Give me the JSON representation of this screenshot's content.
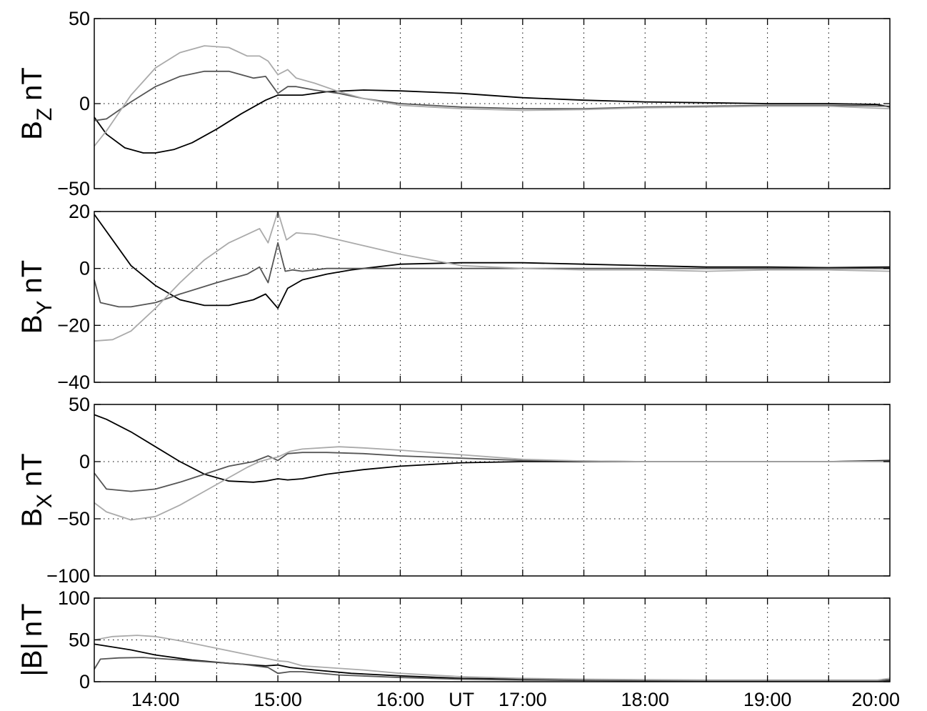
{
  "chart_data": [
    {
      "type": "line",
      "ylabel": {
        "main": "B",
        "sub": "Z",
        "unit": "nT"
      },
      "ylim": [
        -50,
        50
      ],
      "yticks": [
        -50,
        0,
        50
      ],
      "ytick_labels": [
        "−50",
        "0",
        "50"
      ],
      "xlim": [
        13.5,
        20.0
      ],
      "series": [
        {
          "color": "#000000",
          "x": [
            13.5,
            13.6,
            13.75,
            13.9,
            14.0,
            14.15,
            14.3,
            14.5,
            14.7,
            14.9,
            15.0,
            15.2,
            15.4,
            15.7,
            16.0,
            16.5,
            17.0,
            17.5,
            18.0,
            18.5,
            19.0,
            19.5,
            19.9,
            20.0
          ],
          "y": [
            -8,
            -18,
            -26,
            -29,
            -29,
            -27,
            -23,
            -15,
            -6,
            2,
            5,
            5,
            7,
            8,
            7.5,
            6,
            3.5,
            2,
            1,
            0.5,
            0,
            0,
            -0.5,
            -2
          ]
        },
        {
          "color": "#555555",
          "x": [
            13.5,
            13.6,
            13.8,
            14.0,
            14.2,
            14.4,
            14.6,
            14.8,
            14.9,
            15.0,
            15.08,
            15.15,
            15.3,
            15.5,
            15.7,
            16.0,
            16.5,
            17.0,
            17.5,
            18.0,
            18.5,
            19.0,
            19.5,
            20.0
          ],
          "y": [
            -10,
            -9,
            1,
            10,
            16,
            19,
            19,
            15,
            16,
            6,
            10,
            10,
            8,
            6,
            3,
            0,
            -2,
            -3,
            -3,
            -2,
            -1.5,
            -1,
            -1,
            -1.5
          ]
        },
        {
          "color": "#aaaaaa",
          "x": [
            13.5,
            13.6,
            13.8,
            14.0,
            14.2,
            14.4,
            14.6,
            14.75,
            14.85,
            14.92,
            15.0,
            15.08,
            15.15,
            15.3,
            15.5,
            15.7,
            16.0,
            16.5,
            17.0,
            17.5,
            18.0,
            18.5,
            19.0,
            19.5,
            20.0
          ],
          "y": [
            -25,
            -16,
            5,
            21,
            30,
            34,
            33,
            28,
            28,
            25,
            17,
            20,
            15,
            12,
            7,
            3,
            -1,
            -3,
            -4,
            -3.5,
            -2.5,
            -2,
            -1.5,
            -1.5,
            -3
          ]
        }
      ]
    },
    {
      "type": "line",
      "ylabel": {
        "main": "B",
        "sub": "Y",
        "unit": "nT"
      },
      "ylim": [
        -40,
        20
      ],
      "yticks": [
        -40,
        -20,
        0,
        20
      ],
      "ytick_labels": [
        "−40",
        "−20",
        "0",
        "20"
      ],
      "xlim": [
        13.5,
        20.0
      ],
      "series": [
        {
          "color": "#000000",
          "x": [
            13.5,
            13.65,
            13.8,
            14.0,
            14.2,
            14.4,
            14.6,
            14.8,
            14.9,
            15.0,
            15.08,
            15.2,
            15.4,
            15.6,
            15.8,
            16.0,
            16.5,
            17.0,
            17.5,
            18.0,
            18.5,
            19.0,
            19.5,
            20.0
          ],
          "y": [
            19,
            10,
            1,
            -6,
            -11,
            -13,
            -13,
            -11,
            -9,
            -14,
            -7,
            -4,
            -2,
            -0.5,
            0.5,
            1.5,
            2,
            2,
            1.5,
            1,
            0.5,
            0.5,
            0.3,
            0.5
          ]
        },
        {
          "color": "#555555",
          "x": [
            13.5,
            13.55,
            13.7,
            13.8,
            14.0,
            14.2,
            14.5,
            14.75,
            14.85,
            14.92,
            15.0,
            15.06,
            15.12,
            15.2,
            15.4,
            15.7,
            16.0,
            16.5,
            17.0,
            17.5,
            18.0,
            18.5,
            19.0,
            19.5,
            20.0
          ],
          "y": [
            -4,
            -12,
            -13.5,
            -13.5,
            -12,
            -9,
            -5,
            -2,
            0.5,
            -5,
            9,
            -1,
            -0.5,
            -1,
            0,
            0,
            0,
            0,
            0,
            0,
            0,
            0,
            0,
            0,
            0
          ]
        },
        {
          "color": "#aaaaaa",
          "x": [
            13.5,
            13.65,
            13.8,
            14.0,
            14.2,
            14.4,
            14.6,
            14.75,
            14.85,
            14.92,
            15.0,
            15.07,
            15.15,
            15.3,
            15.5,
            15.7,
            16.0,
            16.5,
            17.0,
            17.5,
            18.0,
            18.5,
            19.0,
            19.5,
            20.0
          ],
          "y": [
            -25.5,
            -25,
            -22,
            -14,
            -5,
            3,
            9,
            12,
            14,
            9,
            20,
            10,
            12.5,
            12,
            10,
            8,
            5,
            1,
            0,
            -0.5,
            -0.5,
            -1,
            -0.5,
            -0.5,
            -1
          ]
        }
      ]
    },
    {
      "type": "line",
      "ylabel": {
        "main": "B",
        "sub": "X",
        "unit": "nT"
      },
      "ylim": [
        -100,
        50
      ],
      "yticks": [
        -100,
        -50,
        0,
        50
      ],
      "ytick_labels": [
        "−100",
        "−50",
        "0",
        "50"
      ],
      "xlim": [
        13.5,
        20.0
      ],
      "series": [
        {
          "color": "#000000",
          "x": [
            13.5,
            13.6,
            13.8,
            14.0,
            14.2,
            14.4,
            14.6,
            14.8,
            14.9,
            15.0,
            15.08,
            15.2,
            15.4,
            15.7,
            16.0,
            16.5,
            17.0,
            17.5,
            18.0,
            18.5,
            19.0,
            19.5,
            20.0
          ],
          "y": [
            41,
            37,
            26,
            13,
            0,
            -11,
            -17,
            -18,
            -17,
            -15,
            -16,
            -15,
            -11,
            -7,
            -4,
            -1,
            0,
            0,
            0,
            0,
            0,
            0,
            1
          ]
        },
        {
          "color": "#555555",
          "x": [
            13.5,
            13.6,
            13.8,
            14.0,
            14.2,
            14.4,
            14.6,
            14.8,
            14.92,
            15.0,
            15.08,
            15.2,
            15.4,
            15.7,
            16.0,
            16.5,
            17.0,
            17.5,
            18.0,
            18.5,
            19.0,
            19.5,
            20.0
          ],
          "y": [
            -10,
            -24,
            -26,
            -24,
            -18,
            -11,
            -4,
            0,
            5,
            1,
            7,
            8,
            8,
            7,
            5,
            3,
            1,
            0.5,
            0,
            0,
            0,
            0,
            0.5
          ]
        },
        {
          "color": "#aaaaaa",
          "x": [
            13.5,
            13.6,
            13.8,
            14.0,
            14.2,
            14.4,
            14.6,
            14.75,
            14.85,
            14.95,
            15.0,
            15.1,
            15.2,
            15.5,
            15.7,
            16.0,
            16.5,
            17.0,
            17.5,
            18.0,
            18.5,
            19.0,
            19.5,
            20.0
          ],
          "y": [
            -36,
            -44,
            -51,
            -48,
            -38,
            -26,
            -14,
            -5,
            0,
            3,
            4,
            9,
            11,
            13,
            12,
            10,
            6,
            2,
            0.5,
            0,
            0,
            0,
            0,
            0
          ]
        }
      ]
    },
    {
      "type": "line",
      "ylabel": {
        "main": "|B|",
        "sub": "",
        "unit": "nT"
      },
      "ylim": [
        0,
        100
      ],
      "yticks": [
        0,
        50,
        100
      ],
      "ytick_labels": [
        "0",
        "50",
        "100"
      ],
      "xlim": [
        13.5,
        20.0
      ],
      "xticks": [
        14,
        15,
        16,
        17,
        18,
        19,
        20
      ],
      "xtick_labels": [
        "14:00",
        "15:00",
        "16:00",
        "17:00",
        "18:00",
        "19:00",
        "20:00"
      ],
      "xaxis_unit": "UT",
      "series": [
        {
          "color": "#000000",
          "x": [
            13.5,
            13.8,
            14.0,
            14.3,
            14.6,
            14.9,
            15.0,
            15.1,
            15.3,
            15.6,
            16.0,
            16.5,
            17.0,
            17.5,
            18.0,
            18.5,
            19.0,
            19.5,
            19.9,
            20.0
          ],
          "y": [
            45,
            38,
            32,
            26,
            22,
            19,
            20,
            17,
            14,
            10,
            7,
            4,
            3,
            2,
            1.5,
            1,
            1,
            1,
            1,
            2
          ]
        },
        {
          "color": "#555555",
          "x": [
            13.5,
            13.55,
            13.7,
            13.9,
            14.1,
            14.4,
            14.7,
            14.92,
            15.0,
            15.1,
            15.2,
            15.5,
            16.0,
            16.5,
            17.0,
            17.5,
            18.0,
            18.5,
            19.0,
            19.5,
            20.0
          ],
          "y": [
            15,
            27,
            28.5,
            29,
            27,
            24,
            21,
            17,
            10,
            12,
            12,
            8,
            5,
            3,
            2,
            1.5,
            1,
            1,
            1,
            1,
            1
          ]
        },
        {
          "color": "#aaaaaa",
          "x": [
            13.5,
            13.65,
            13.85,
            14.0,
            14.2,
            14.5,
            14.8,
            15.0,
            15.08,
            15.2,
            15.4,
            15.7,
            16.0,
            16.5,
            17.0,
            17.5,
            18.0,
            18.5,
            19.0,
            19.5,
            19.9,
            20.0
          ],
          "y": [
            50,
            54,
            55.5,
            54,
            49,
            40,
            31,
            25,
            24,
            19,
            17,
            14,
            10,
            6,
            4,
            3,
            2.5,
            2,
            2,
            2,
            2,
            4
          ]
        }
      ]
    }
  ]
}
